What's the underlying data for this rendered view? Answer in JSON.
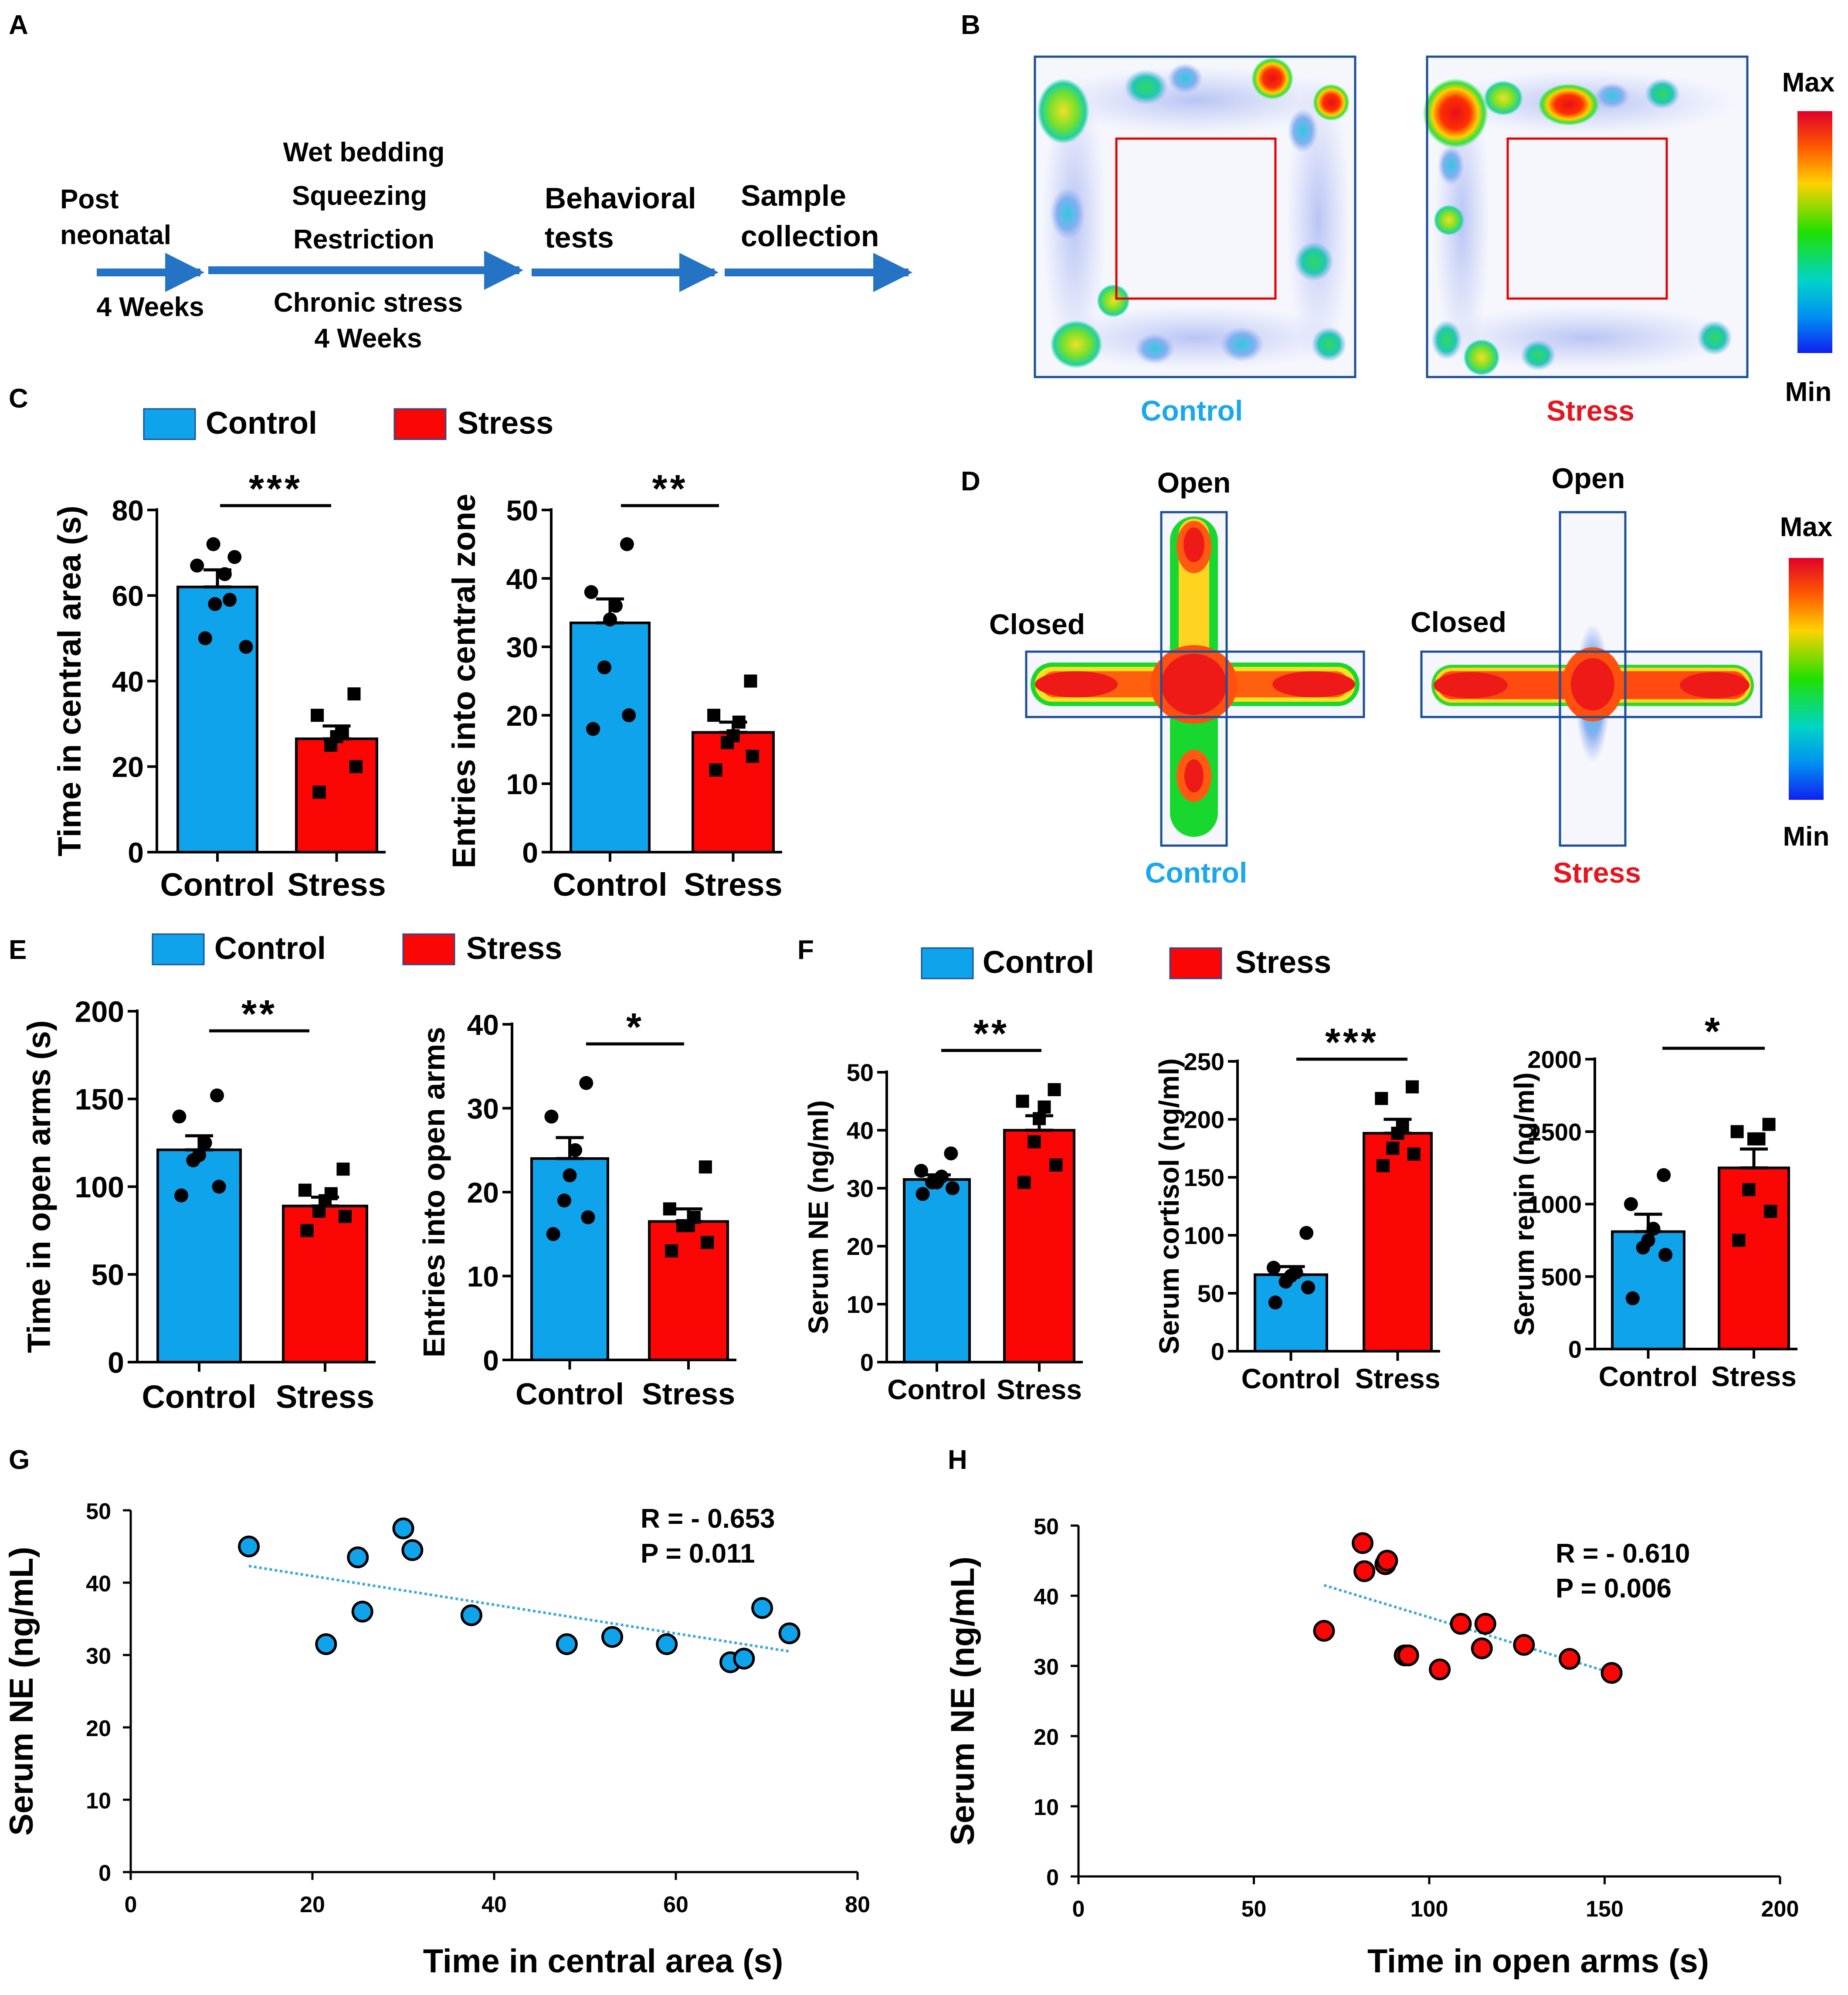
{
  "colors": {
    "control": "#0fa3ec",
    "stress": "#fb0505",
    "control_text": "#1aa7ee",
    "stress_text": "#e6141e",
    "frame": "#1a4f96",
    "arrow": "#2573c4",
    "trend": "#3aa8d8",
    "zone": "#e60000"
  },
  "panel_labels": {
    "A": "A",
    "B": "B",
    "C": "C",
    "D": "D",
    "E": "E",
    "F": "F",
    "G": "G",
    "H": "H"
  },
  "legend": {
    "control": "Control",
    "stress": "Stress"
  },
  "timeline": {
    "post_neonatal": [
      "Post",
      "neonatal"
    ],
    "four_weeks": "4 Weeks",
    "stressors": [
      "Wet bedding",
      "Squeezing",
      "Restriction"
    ],
    "chronic_stress": [
      "Chronic stress",
      "4 Weeks"
    ],
    "behavioral": [
      "Behavioral",
      "tests"
    ],
    "sample": [
      "Sample",
      "collection"
    ]
  },
  "heatmap_scale": {
    "max": "Max",
    "min": "Min"
  },
  "open_field": {
    "control_label": "Control",
    "stress_label": "Stress"
  },
  "plus_maze": {
    "open": "Open",
    "closed": "Closed",
    "control_label": "Control",
    "stress_label": "Stress"
  },
  "chart_data": [
    {
      "id": "C1",
      "type": "bar",
      "ylabel": "Time in central area (s)",
      "categories": [
        "Control",
        "Stress"
      ],
      "ylim": [
        0,
        80
      ],
      "yticks": [
        0,
        20,
        40,
        60,
        80
      ],
      "values": [
        62,
        26.5
      ],
      "sem": [
        4,
        3
      ],
      "points": [
        [
          69,
          67,
          65,
          72,
          58,
          59,
          50,
          48
        ],
        [
          37,
          32,
          28,
          27,
          25,
          20,
          14
        ]
      ],
      "significance": "***"
    },
    {
      "id": "C2",
      "type": "bar",
      "ylabel": "Entries into central zone",
      "categories": [
        "Control",
        "Stress"
      ],
      "ylim": [
        0,
        50
      ],
      "yticks": [
        0,
        10,
        20,
        30,
        40,
        50
      ],
      "values": [
        33.5,
        17.5
      ],
      "sem": [
        3.5,
        1.5
      ],
      "points": [
        [
          45,
          38,
          36,
          34,
          27,
          20,
          18
        ],
        [
          25,
          20,
          19,
          17,
          16,
          14,
          12
        ]
      ],
      "significance": "**"
    },
    {
      "id": "E1",
      "type": "bar",
      "ylabel": "Time in open arms (s)",
      "categories": [
        "Control",
        "Stress"
      ],
      "ylim": [
        0,
        200
      ],
      "yticks": [
        0,
        50,
        100,
        150,
        200
      ],
      "values": [
        121,
        89
      ],
      "sem": [
        8,
        5
      ],
      "points": [
        [
          152,
          140,
          125,
          118,
          115,
          100,
          95
        ],
        [
          110,
          98,
          96,
          92,
          86,
          83,
          75
        ]
      ],
      "significance": "**"
    },
    {
      "id": "E2",
      "type": "bar",
      "ylabel": "Entries into open arms",
      "categories": [
        "Control",
        "Stress"
      ],
      "ylim": [
        0,
        40
      ],
      "yticks": [
        0,
        10,
        20,
        30,
        40
      ],
      "values": [
        24,
        16.5
      ],
      "sem": [
        2.5,
        1.5
      ],
      "points": [
        [
          33,
          29,
          25,
          22,
          19,
          17,
          15
        ],
        [
          23,
          18,
          17,
          16,
          16,
          14,
          13
        ]
      ],
      "significance": "*"
    },
    {
      "id": "F1",
      "type": "bar",
      "ylabel": "Serum NE (ng/ml)",
      "categories": [
        "Control",
        "Stress"
      ],
      "ylim": [
        0,
        50
      ],
      "yticks": [
        0,
        10,
        20,
        30,
        40,
        50
      ],
      "values": [
        31.5,
        40
      ],
      "sem": [
        0.8,
        2.5
      ],
      "points": [
        [
          36,
          33,
          32,
          31,
          31,
          30,
          29
        ],
        [
          47,
          45,
          44,
          42,
          38,
          34,
          31
        ]
      ],
      "significance": "**"
    },
    {
      "id": "F2",
      "type": "bar",
      "ylabel": "Serum cortisol (ng/ml)",
      "categories": [
        "Control",
        "Stress"
      ],
      "ylim": [
        0,
        250
      ],
      "yticks": [
        0,
        50,
        100,
        150,
        200,
        250
      ],
      "values": [
        66,
        188
      ],
      "sem": [
        7,
        12
      ],
      "points": [
        [
          102,
          72,
          68,
          65,
          60,
          55,
          42
        ],
        [
          228,
          218,
          195,
          188,
          175,
          170,
          160
        ]
      ],
      "significance": "***"
    },
    {
      "id": "F3",
      "type": "bar",
      "ylabel": "Serum renin (ng/ml)",
      "categories": [
        "Control",
        "Stress"
      ],
      "ylim": [
        0,
        2000
      ],
      "yticks": [
        0,
        500,
        1000,
        1500,
        2000
      ],
      "values": [
        810,
        1250
      ],
      "sem": [
        120,
        130
      ],
      "points": [
        [
          1200,
          1000,
          830,
          750,
          700,
          650,
          350
        ],
        [
          1550,
          1500,
          1450,
          1450,
          1100,
          950,
          750
        ]
      ],
      "significance": "*"
    },
    {
      "id": "G",
      "type": "scatter",
      "xlabel": "Time in central area (s)",
      "ylabel": "Serum NE (ng/mL)",
      "xlim": [
        0,
        80
      ],
      "ylim": [
        0,
        50
      ],
      "xticks": [
        0,
        20,
        40,
        60,
        80
      ],
      "yticks": [
        0,
        10,
        20,
        30,
        40,
        50
      ],
      "x": [
        13,
        21.5,
        25,
        25.5,
        30,
        31,
        37.5,
        48,
        53,
        59,
        66,
        67.5,
        69.5,
        72.5
      ],
      "y": [
        45,
        31.5,
        43.5,
        36,
        47.5,
        44.5,
        35.5,
        31.5,
        32.5,
        31.5,
        29,
        29.5,
        36.5,
        33
      ],
      "trend": [
        [
          13,
          42.3
        ],
        [
          72.5,
          30.5
        ]
      ],
      "stats": [
        "R = - 0.653",
        "P = 0.011"
      ]
    },
    {
      "id": "H",
      "type": "scatter",
      "xlabel": "Time in open arms (s)",
      "ylabel": "Serum NE (ng/mL)",
      "xlim": [
        0,
        200
      ],
      "ylim": [
        0,
        50
      ],
      "xticks": [
        0,
        50,
        100,
        150,
        200
      ],
      "yticks": [
        0,
        10,
        20,
        30,
        40,
        50
      ],
      "x": [
        70,
        81,
        81.5,
        87.5,
        88,
        93,
        94,
        103,
        109,
        115,
        116,
        127,
        140,
        152
      ],
      "y": [
        35,
        47.5,
        43.5,
        44.5,
        45,
        31.5,
        31.5,
        29.5,
        36,
        32.5,
        36,
        33,
        31,
        29
      ],
      "trend": [
        [
          70,
          41.5
        ],
        [
          152,
          29
        ]
      ],
      "stats": [
        "R = - 0.610",
        "P = 0.006"
      ]
    }
  ]
}
